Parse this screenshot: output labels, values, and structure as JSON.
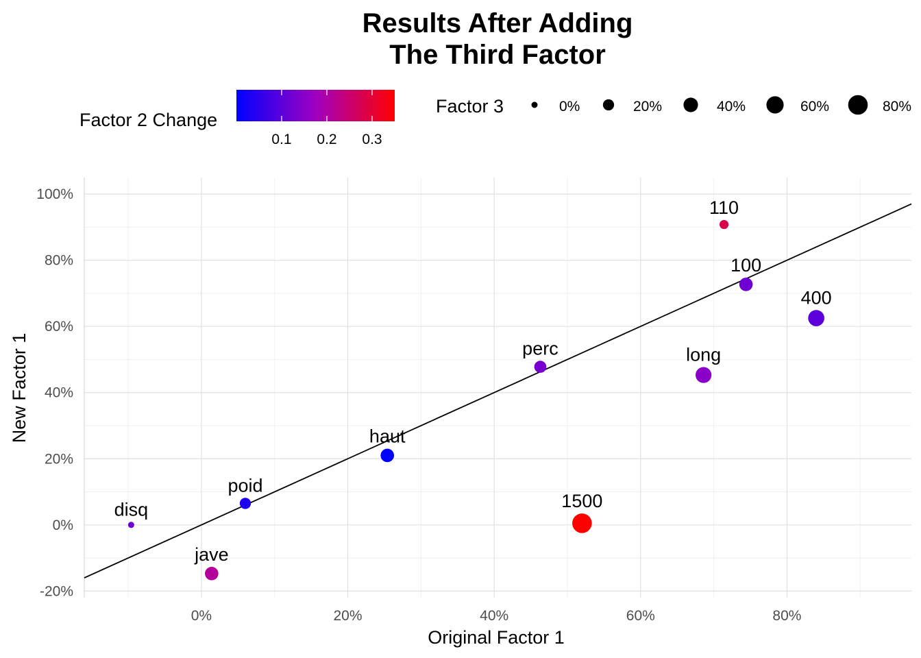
{
  "chart_data": {
    "type": "scatter",
    "title": [
      "Results After Adding",
      "The Third Factor"
    ],
    "xlabel": "Original Factor 1",
    "ylabel": "New Factor 1",
    "xlim": [
      -0.16,
      0.97
    ],
    "ylim": [
      -0.22,
      1.05
    ],
    "x_ticks": [
      0,
      0.2,
      0.4,
      0.6,
      0.8
    ],
    "x_tick_labels": [
      "0%",
      "20%",
      "40%",
      "60%",
      "80%"
    ],
    "y_ticks": [
      -0.2,
      0,
      0.2,
      0.4,
      0.6,
      0.8,
      1.0
    ],
    "y_tick_labels": [
      "-20%",
      "0%",
      "20%",
      "40%",
      "60%",
      "80%",
      "100%"
    ],
    "grid": true,
    "reference_line": {
      "intercept": 0,
      "slope": 1
    },
    "color_legend": {
      "title": "Factor 2 Change",
      "low_color": "#0000FF",
      "high_color": "#FF0000",
      "range": [
        0.0,
        0.35
      ],
      "ticks": [
        0.1,
        0.2,
        0.3
      ],
      "tick_labels": [
        "0.1",
        "0.2",
        "0.3"
      ]
    },
    "size_legend": {
      "title": "Factor 3",
      "values": [
        0,
        0.2,
        0.4,
        0.6,
        0.8
      ],
      "labels": [
        "0%",
        "20%",
        "40%",
        "60%",
        "80%"
      ]
    },
    "legend_position": "top",
    "points": [
      {
        "label": "disq",
        "x": -0.096,
        "y": 0.0,
        "color": 0.12,
        "size": 0.0
      },
      {
        "label": "poid",
        "x": 0.06,
        "y": 0.065,
        "color": 0.03,
        "size": 0.2
      },
      {
        "label": "jave",
        "x": 0.014,
        "y": -0.147,
        "color": 0.21,
        "size": 0.33
      },
      {
        "label": "haut",
        "x": 0.254,
        "y": 0.21,
        "color": 0.0,
        "size": 0.33
      },
      {
        "label": "perc",
        "x": 0.463,
        "y": 0.478,
        "color": 0.13,
        "size": 0.25
      },
      {
        "label": "1500",
        "x": 0.52,
        "y": 0.005,
        "color": 0.35,
        "size": 0.8
      },
      {
        "label": "long",
        "x": 0.686,
        "y": 0.453,
        "color": 0.15,
        "size": 0.5
      },
      {
        "label": "110",
        "x": 0.714,
        "y": 0.908,
        "color": 0.28,
        "size": 0.1
      },
      {
        "label": "100",
        "x": 0.744,
        "y": 0.727,
        "color": 0.12,
        "size": 0.33
      },
      {
        "label": "400",
        "x": 0.84,
        "y": 0.625,
        "color": 0.1,
        "size": 0.52
      }
    ]
  }
}
